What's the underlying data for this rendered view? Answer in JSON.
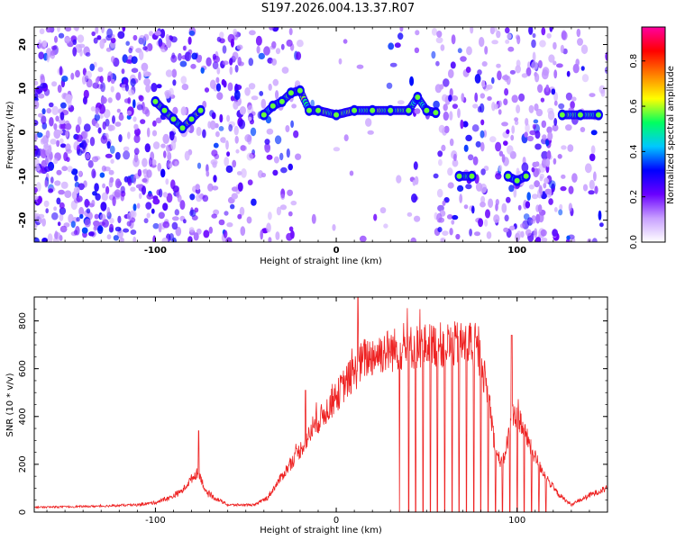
{
  "title": "S197.2026.004.13.37.R07",
  "chart_data": [
    {
      "type": "heatmap",
      "title": "S197.2026.004.13.37.R07",
      "xlabel": "Height of straight line (km)",
      "ylabel": "Frequency (Hz)",
      "xlim": [
        -167,
        150
      ],
      "ylim": [
        -25,
        24
      ],
      "x_ticks": [
        -100,
        0,
        100
      ],
      "x_tick_labels": [
        "-100",
        "0",
        "100"
      ],
      "y_ticks": [
        -20,
        -10,
        0,
        10,
        20
      ],
      "y_tick_labels": [
        "-20",
        "-10",
        "0",
        "10",
        "20"
      ],
      "colorbar": {
        "label": "Normalized spectral amplitude",
        "range": [
          0.0,
          0.95
        ],
        "ticks": [
          0.0,
          0.2,
          0.4,
          0.6,
          0.8
        ],
        "tick_labels": [
          "0.0",
          "0.2",
          "0.4",
          "0.6",
          "0.8"
        ],
        "colormap": [
          "#ffffff",
          "#c8a0ff",
          "#6a00ff",
          "#0000ff",
          "#00c8ff",
          "#00ff60",
          "#ffff00",
          "#ff8000",
          "#ff0000",
          "#ff00a0"
        ]
      },
      "ridge": [
        {
          "x": -100,
          "y": 7
        },
        {
          "x": -95,
          "y": 5
        },
        {
          "x": -90,
          "y": 3
        },
        {
          "x": -85,
          "y": 1
        },
        {
          "x": -80,
          "y": 3
        },
        {
          "x": -75,
          "y": 5
        },
        {
          "x": -40,
          "y": 4
        },
        {
          "x": -35,
          "y": 6
        },
        {
          "x": -30,
          "y": 7
        },
        {
          "x": -25,
          "y": 9
        },
        {
          "x": -20,
          "y": 9.5
        },
        {
          "x": -15,
          "y": 5
        },
        {
          "x": -10,
          "y": 5
        },
        {
          "x": 0,
          "y": 4
        },
        {
          "x": 10,
          "y": 5
        },
        {
          "x": 20,
          "y": 5
        },
        {
          "x": 30,
          "y": 5
        },
        {
          "x": 40,
          "y": 5
        },
        {
          "x": 45,
          "y": 8
        },
        {
          "x": 50,
          "y": 5
        },
        {
          "x": 55,
          "y": 4.5
        },
        {
          "x": 68,
          "y": -10
        },
        {
          "x": 75,
          "y": -10
        },
        {
          "x": 95,
          "y": -10
        },
        {
          "x": 100,
          "y": -11
        },
        {
          "x": 105,
          "y": -10
        },
        {
          "x": 125,
          "y": 4
        },
        {
          "x": 135,
          "y": 4
        },
        {
          "x": 145,
          "y": 4
        }
      ]
    },
    {
      "type": "line",
      "xlabel": "Height of straight line (km)",
      "ylabel": "SNR (10 * v/v)",
      "xlim": [
        -167,
        150
      ],
      "ylim": [
        0,
        900
      ],
      "x_ticks": [
        -100,
        0,
        100
      ],
      "x_tick_labels": [
        "-100",
        "0",
        "100"
      ],
      "y_ticks": [
        0,
        200,
        400,
        600,
        800
      ],
      "y_tick_labels": [
        "0",
        "200",
        "400",
        "600",
        "800"
      ],
      "color": "#ee2222",
      "envelope": [
        {
          "x": -167,
          "y": 20
        },
        {
          "x": -150,
          "y": 22
        },
        {
          "x": -130,
          "y": 25
        },
        {
          "x": -110,
          "y": 30
        },
        {
          "x": -100,
          "y": 40
        },
        {
          "x": -92,
          "y": 60
        },
        {
          "x": -85,
          "y": 90
        },
        {
          "x": -80,
          "y": 140
        },
        {
          "x": -76,
          "y": 170
        },
        {
          "x": -72,
          "y": 80
        },
        {
          "x": -60,
          "y": 30
        },
        {
          "x": -45,
          "y": 30
        },
        {
          "x": -38,
          "y": 60
        },
        {
          "x": -30,
          "y": 150
        },
        {
          "x": -20,
          "y": 260
        },
        {
          "x": -10,
          "y": 380
        },
        {
          "x": 0,
          "y": 480
        },
        {
          "x": 5,
          "y": 540
        },
        {
          "x": 10,
          "y": 580
        },
        {
          "x": 15,
          "y": 640
        },
        {
          "x": 25,
          "y": 670
        },
        {
          "x": 40,
          "y": 690
        },
        {
          "x": 60,
          "y": 700
        },
        {
          "x": 75,
          "y": 700
        },
        {
          "x": 80,
          "y": 640
        },
        {
          "x": 85,
          "y": 450
        },
        {
          "x": 88,
          "y": 250
        },
        {
          "x": 92,
          "y": 200
        },
        {
          "x": 98,
          "y": 420
        },
        {
          "x": 102,
          "y": 380
        },
        {
          "x": 108,
          "y": 260
        },
        {
          "x": 115,
          "y": 160
        },
        {
          "x": 120,
          "y": 100
        },
        {
          "x": 125,
          "y": 60
        },
        {
          "x": 130,
          "y": 30
        },
        {
          "x": 140,
          "y": 70
        },
        {
          "x": 150,
          "y": 100
        }
      ],
      "peaks": [
        {
          "x": -76,
          "y": 340
        },
        {
          "x": -17,
          "y": 510
        },
        {
          "x": 12,
          "y": 900
        },
        {
          "x": 74,
          "y": 790
        },
        {
          "x": 97,
          "y": 740
        }
      ],
      "dropouts": [
        35,
        40,
        44,
        48,
        52,
        56,
        60,
        64,
        68,
        72,
        76,
        80,
        84,
        88,
        92,
        96,
        100,
        104,
        108,
        112,
        116
      ]
    }
  ]
}
